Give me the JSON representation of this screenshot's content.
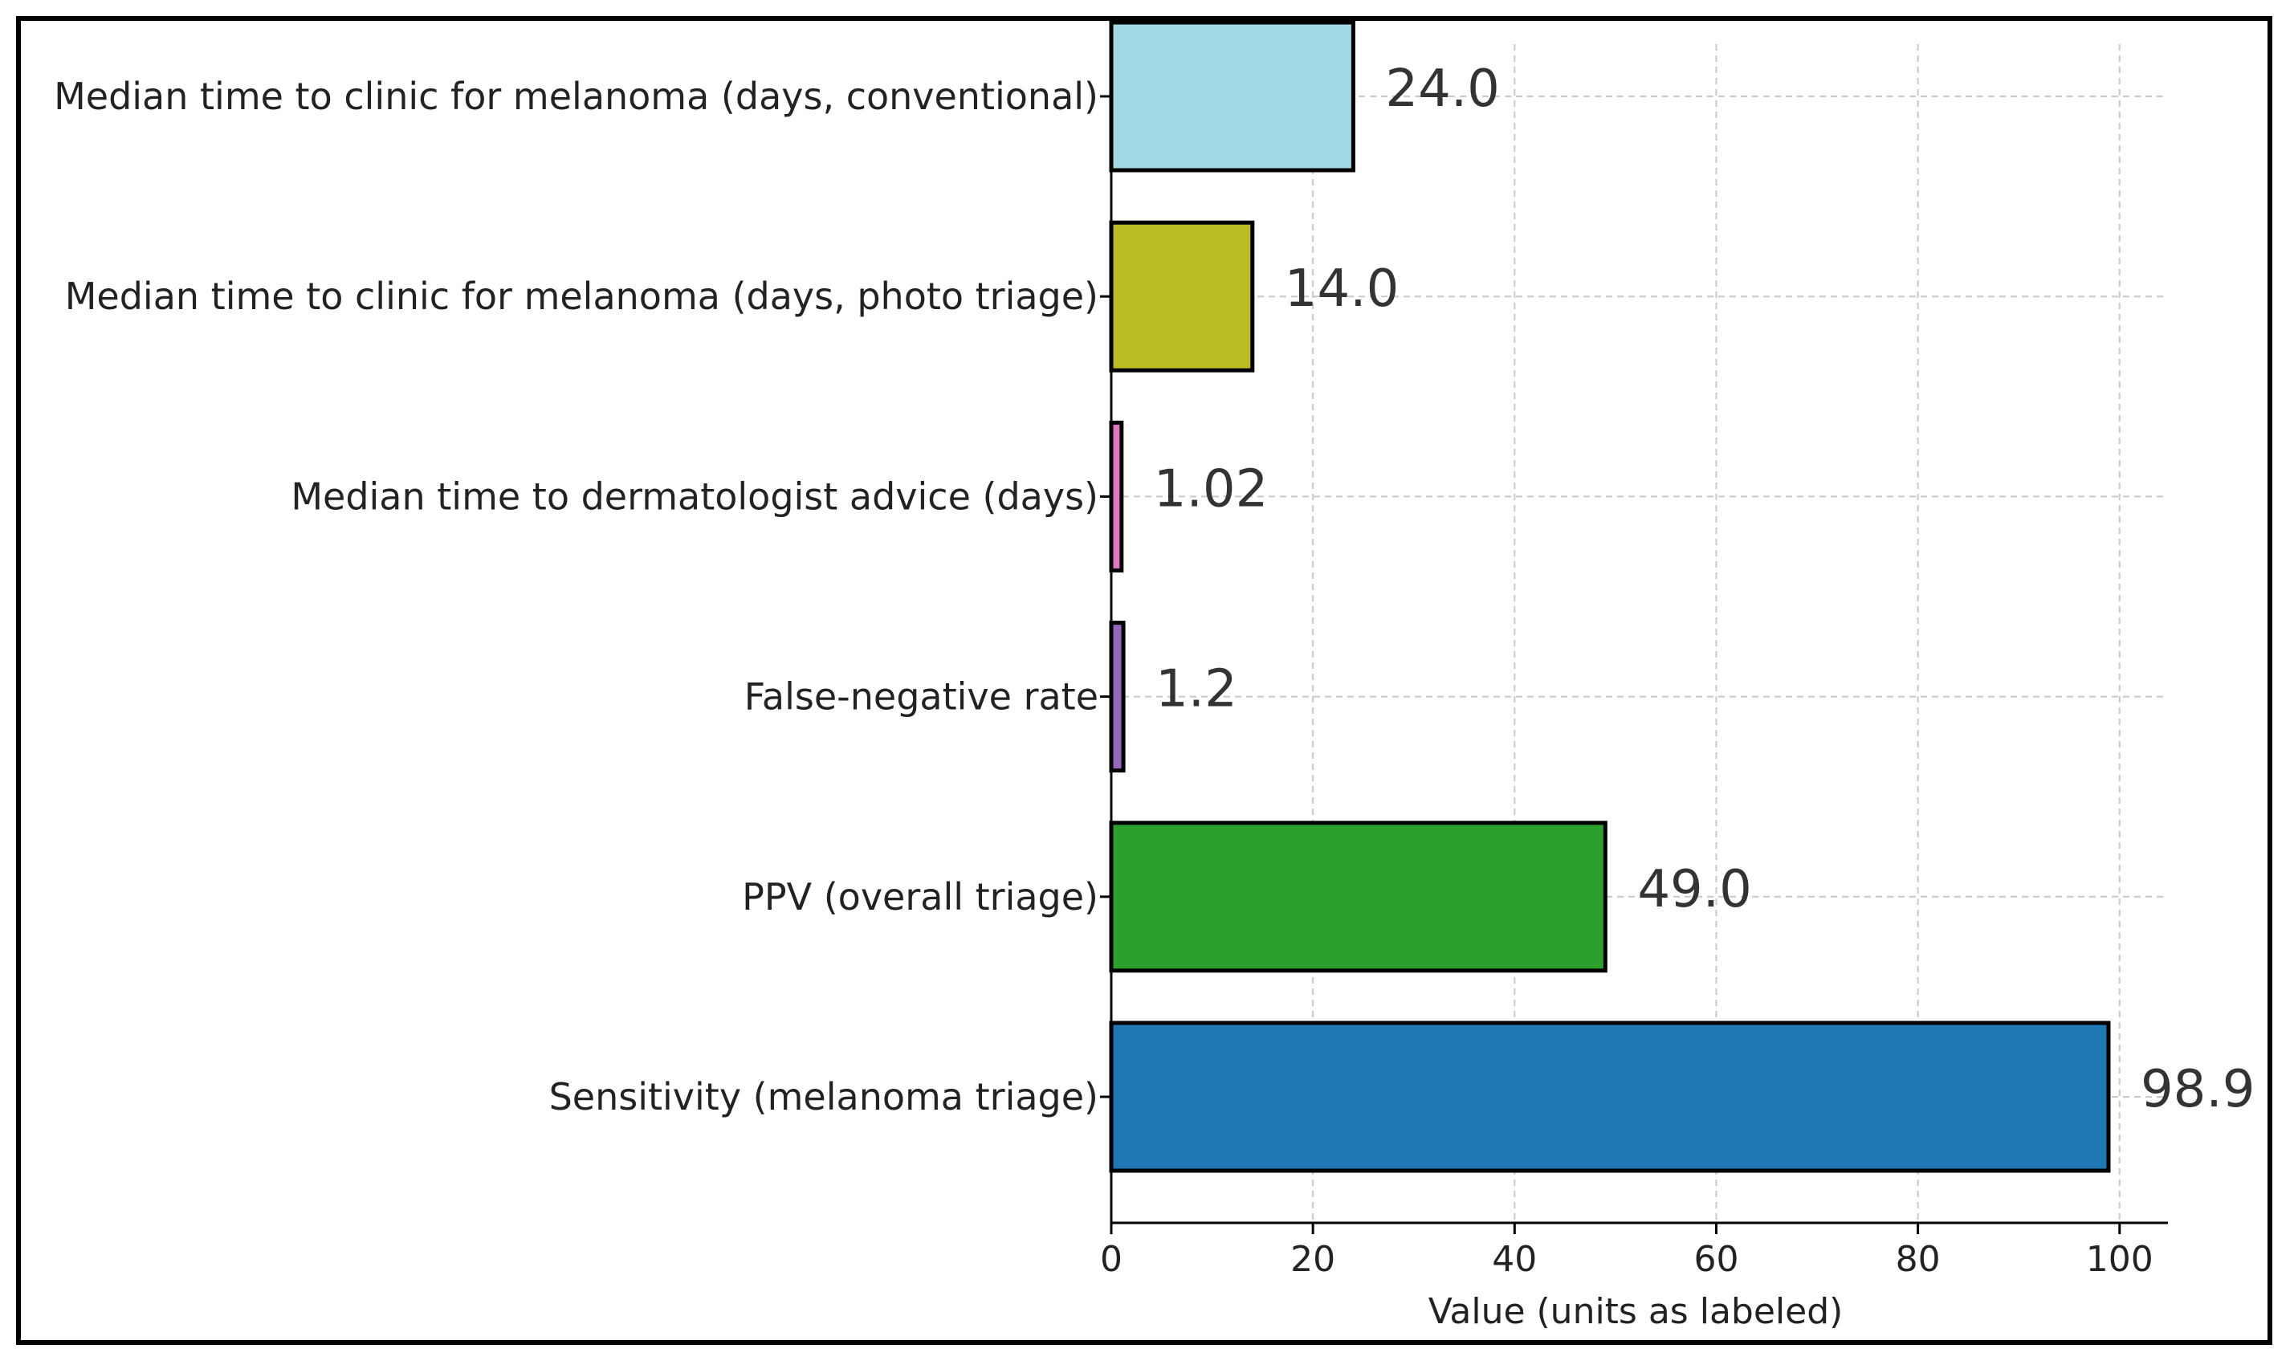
{
  "chart_data": {
    "type": "bar",
    "orientation": "horizontal",
    "title": "",
    "xlabel": "Value (units as labeled)",
    "ylabel": "",
    "xlim": [
      0,
      104
    ],
    "xticks": [
      0,
      20,
      40,
      60,
      80,
      100
    ],
    "grid": true,
    "categories": [
      "Sensitivity (melanoma triage)",
      "PPV (overall triage)",
      "False-negative rate",
      "Median time to dermatologist advice (days)",
      "Median time to clinic for melanoma (days, photo triage)",
      "Median time to clinic for melanoma (days, conventional)"
    ],
    "values": [
      98.9,
      49.0,
      1.2,
      1.02,
      14.0,
      24.0
    ],
    "value_labels": [
      "98.9",
      "49.0",
      "1.2",
      "1.02",
      "14.0",
      "24.0"
    ],
    "colors": [
      "#1f77b4",
      "#2ca02c",
      "#9467bd",
      "#e377c2",
      "#bcbd22",
      "#a1dae5"
    ]
  }
}
